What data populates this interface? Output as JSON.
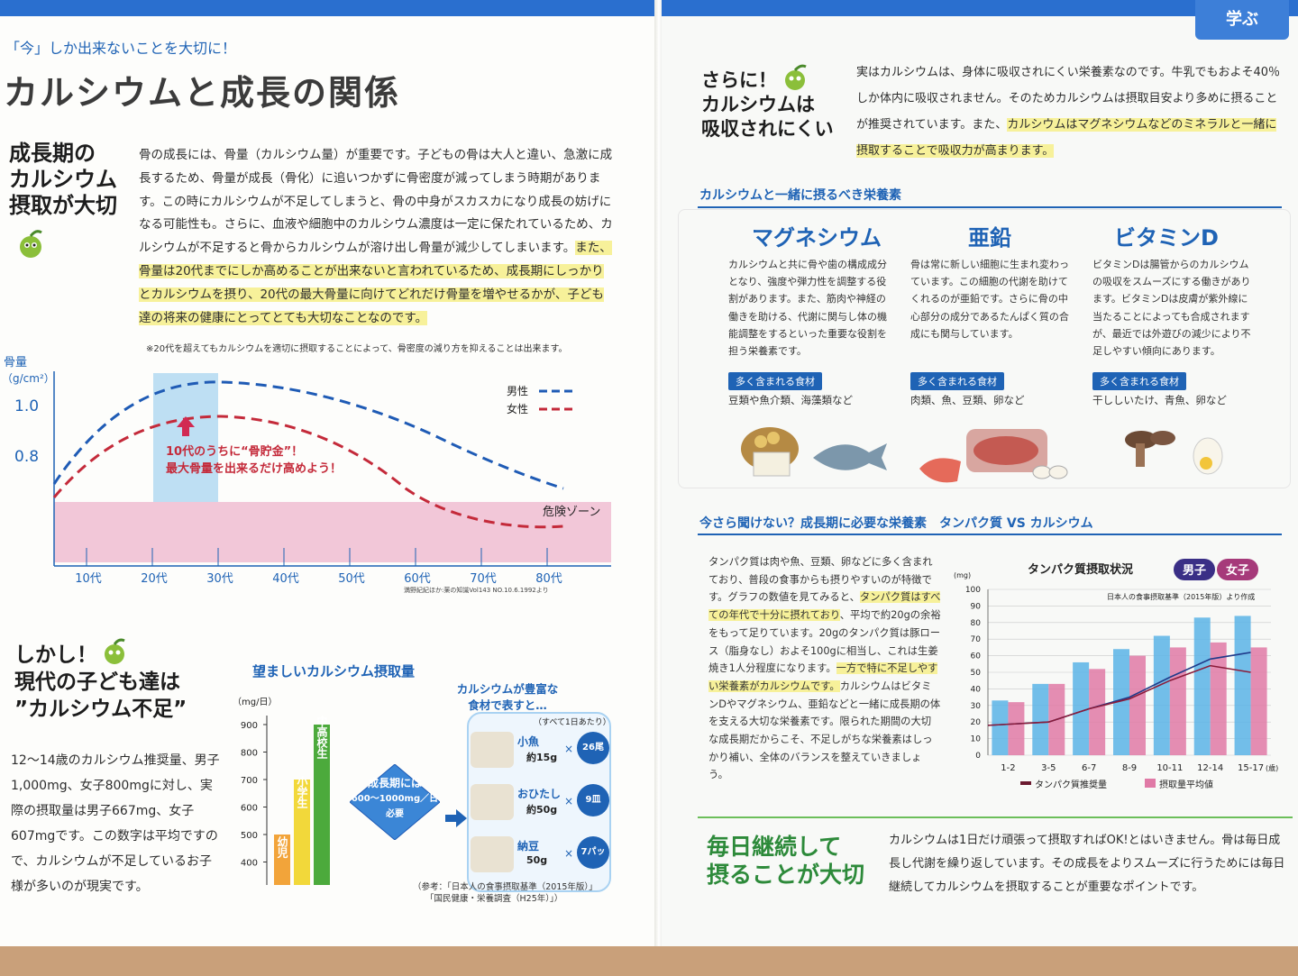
{
  "left": {
    "kicker": "「今」しか出来ないことを大切に！",
    "title": "カルシウムと成長の関係",
    "section1": {
      "heading": [
        "成長期の",
        "カルシウム",
        "摂取が大切"
      ],
      "body": "骨の成長には、骨量（カルシウム量）が重要です。子どもの骨は大人と違い、急激に成長するため、骨量が成長（骨化）に追いつかずに骨密度が減ってしまう時期があります。この時にカルシウムが不足してしまうと、骨の中身がスカスカになり成長の妨げになる可能性も。さらに、血液や細胞中のカルシウム濃度は一定に保たれているため、カルシウムが不足すると骨からカルシウムが溶け出し骨量が減少してしまいます。",
      "body_highlight": "また、骨量は20代までにしか高めることが出来ないと言われているため、成長期にしっかりとカルシウムを摂り、20代の最大骨量に向けてどれだけ骨量を増やせるかが、子ども達の将来の健康にとってとても大切なことなのです。",
      "note": "※20代を超えてもカルシウムを適切に摂取することによって、骨密度の減り方を抑えることは出来ます。"
    },
    "section2": {
      "heading": [
        "しかし！",
        "現代の子ども達は",
        "”カルシウム不足”"
      ],
      "body": "12〜14歳のカルシウム推奨量、男子1,000mg、女子800mgに対し、実際の摂取量は男子667mg、女子607mgです。この数字は平均ですので、カルシウムが不足しているお子様が多いのが現実です。"
    },
    "intake_chart": {
      "title": "望ましいカルシウム摂取量",
      "unit": "（mg/日）",
      "ticks": [
        "900",
        "800",
        "700",
        "600",
        "500",
        "400"
      ],
      "bars": [
        {
          "label": "幼児",
          "value": 500,
          "color": "#f2a43a"
        },
        {
          "label": "小学生",
          "value": 700,
          "color": "#f2d83a"
        },
        {
          "label": "中高校生",
          "value": 900,
          "color": "#4caa3c"
        }
      ],
      "badge_line1": "成長期には",
      "badge_line2": "600〜1000mg／日",
      "badge_line3": "必要"
    },
    "foods": {
      "title_line1": "カルシウムが豊富な",
      "title_line2": "食材で表すと…",
      "note": "（すべて1日あたり）",
      "items": [
        {
          "name": "小魚",
          "amount": "約15g",
          "count": "26尾"
        },
        {
          "name": "おひたし",
          "amount": "約50g",
          "count": "9皿"
        },
        {
          "name": "納豆",
          "amount": "50g",
          "count": "7パック"
        }
      ],
      "times": "×",
      "reference_line1": "（参考：「日本人の食事摂取基準（2015年版）」",
      "reference_line2": "「国民健康・栄養調査（H25年）」）"
    }
  },
  "bone_chart": {
    "ylabel_line1": "骨量",
    "ylabel_line2": "（g/cm²）",
    "yticks": [
      "1.0",
      "0.8"
    ],
    "xticks": [
      "10代",
      "20代",
      "30代",
      "40代",
      "50代",
      "60代",
      "70代",
      "80代"
    ],
    "legend": [
      {
        "name": "男性",
        "color": "#1f5bb5"
      },
      {
        "name": "女性",
        "color": "#c42a3a"
      }
    ],
    "annotation_line1": "10代のうちに“骨貯金”！",
    "annotation_line2": "最大骨量を出来るだけ高めよう！",
    "danger_label": "危険ゾーン",
    "source": "満野紀紀ほか:薬の知識Vol143 NO.10.6.1992より"
  },
  "right": {
    "corner_tab": "学ぶ",
    "absorb": {
      "heading": [
        "さらに！",
        "カルシウムは",
        "吸収されにくい"
      ],
      "body": "実はカルシウムは、身体に吸収されにくい栄養素なのです。牛乳でもおよそ40％しか体内に吸収されません。そのためカルシウムは摂取目安より多めに摂ることが推奨されています。また、",
      "body_highlight": "カルシウムはマグネシウムなどのミネラルと一緒に摂取することで吸収力が高まります。"
    },
    "nutrients": {
      "section_title": "カルシウムと一緒に摂るべき栄養素",
      "foods_tag": "多く含まれる食材",
      "items": [
        {
          "name": "マグネシウム",
          "desc": "カルシウムと共に骨や歯の構成成分となり、強度や弾力性を調整する役割があります。また、筋肉や神経の働きを助ける、代謝に関与し体の機能調整をするといった重要な役割を担う栄養素です。",
          "foods": "豆類や魚介類、海藻類など"
        },
        {
          "name": "亜鉛",
          "desc": "骨は常に新しい細胞に生まれ変わっています。この細胞の代謝を助けてくれるのが亜鉛です。さらに骨の中心部分の成分であるたんぱく質の合成にも関与しています。",
          "foods": "肉類、魚、豆類、卵など"
        },
        {
          "name": "ビタミンD",
          "desc": "ビタミンDは腸管からのカルシウムの吸収をスムーズにする働きがあります。ビタミンDは皮膚が紫外線に当たることによっても合成されますが、最近では外遊びの減少により不足しやすい傾向にあります。",
          "foods": "干ししいたけ、青魚、卵など"
        }
      ]
    },
    "protein": {
      "section_title": "今さら聞けない？成長期に必要な栄養素　タンパク質 VS カルシウム",
      "body1": "タンパク質は肉や魚、豆類、卵などに多く含まれており、普段の食事からも摂りやすいのが特徴です。グラフの数値を見てみると、",
      "body1_highlight": "タンパク質はすべての年代で十分に摂れており",
      "body1_rest": "、平均で約20gの余裕をもって足りています。20gのタンパク質は豚ロース（脂身なし）およそ100gに相当し、これは生姜焼き1人分程度になります。",
      "body2_highlight": "一方で特に不足しやすい栄養素がカルシウムです。",
      "body3": "カルシウムはビタミンDやマグネシウム、亜鉛などと一緒に成長期の体を支える大切な栄養素です。限られた期間の大切な成長期だからこそ、不足しがちな栄養素はしっかり補い、全体のバランスを整えていきましょう。"
    },
    "daily": {
      "heading_line1": "毎日継続して",
      "heading_line2": "摂ることが大切",
      "body": "カルシウムは1日だけ頑張って摂取すればOK!とはいきません。骨は毎日成長し代謝を繰り返しています。その成長をよりスムーズに行うためには毎日継続してカルシウムを摂取することが重要なポイントです。"
    }
  },
  "chart_data": {
    "type": "bar",
    "title": "タンパク質摂取状況",
    "legend_boy": "男子",
    "legend_girl": "女子",
    "source": "日本人の食事摂取基準（2015年版）より作成",
    "unit": "(mg)",
    "x_unit": "(歳)",
    "categories": [
      "1-2",
      "3-5",
      "6-7",
      "8-9",
      "10-11",
      "12-14",
      "15-17"
    ],
    "ylim": [
      0,
      100
    ],
    "yticks": [
      "100",
      "90",
      "80",
      "70",
      "60",
      "50",
      "40",
      "30",
      "20",
      "10",
      "0"
    ],
    "series": [
      {
        "name": "男子",
        "values": [
          33,
          43,
          56,
          64,
          72,
          83,
          84
        ],
        "color": "#5ab4e6"
      },
      {
        "name": "女子",
        "values": [
          32,
          43,
          52,
          60,
          65,
          68,
          65
        ],
        "color": "#e07aa6"
      }
    ],
    "lines": [
      {
        "name": "タンパク質推奨量 男子",
        "values": [
          18,
          20,
          28,
          35,
          47,
          58,
          62
        ],
        "color": "#1f3a8a"
      },
      {
        "name": "タンパク質推奨量 女子",
        "values": [
          18,
          20,
          28,
          34,
          45,
          54,
          50
        ],
        "color": "#8a1c3a"
      }
    ],
    "legend": [
      {
        "name": "タンパク質推奨量",
        "color": "#6b1a2f"
      },
      {
        "name": "摂取量平均値",
        "color": "#e07aa6"
      }
    ]
  }
}
